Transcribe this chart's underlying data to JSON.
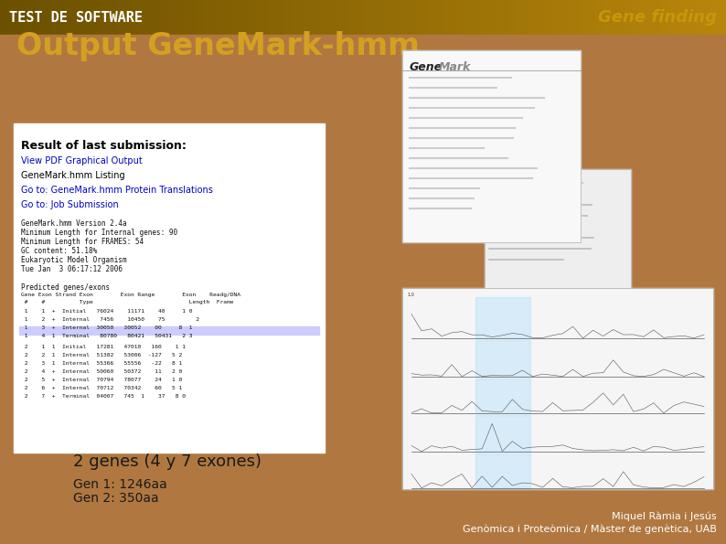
{
  "title_left": "TEST DE SOFTWARE",
  "title_right": "Gene finding",
  "slide_title": "Output GeneMark-hmm",
  "subtitle1": "2 genes (4 y 7 exones)",
  "subtitle2": "Gen 1: 1246aa",
  "subtitle3": "Gen 2: 350aa",
  "footer1": "Miquel Ràmia i Jesús",
  "footer2": "Genòmica i Proteòmica / Màster de genètica, UAB",
  "header_bg_dark": "#6b5000",
  "header_bg_light": "#b8860b",
  "body_bg": "#b07840",
  "white_panel_color": "#ffffff",
  "slide_title_color": "#d4a020",
  "header_text_color": "#ffffff",
  "gene_finding_color": "#c8960a",
  "text_dark": "#1a1a1a",
  "text_light": "#e0c060",
  "footer_text_color": "#ffffff"
}
